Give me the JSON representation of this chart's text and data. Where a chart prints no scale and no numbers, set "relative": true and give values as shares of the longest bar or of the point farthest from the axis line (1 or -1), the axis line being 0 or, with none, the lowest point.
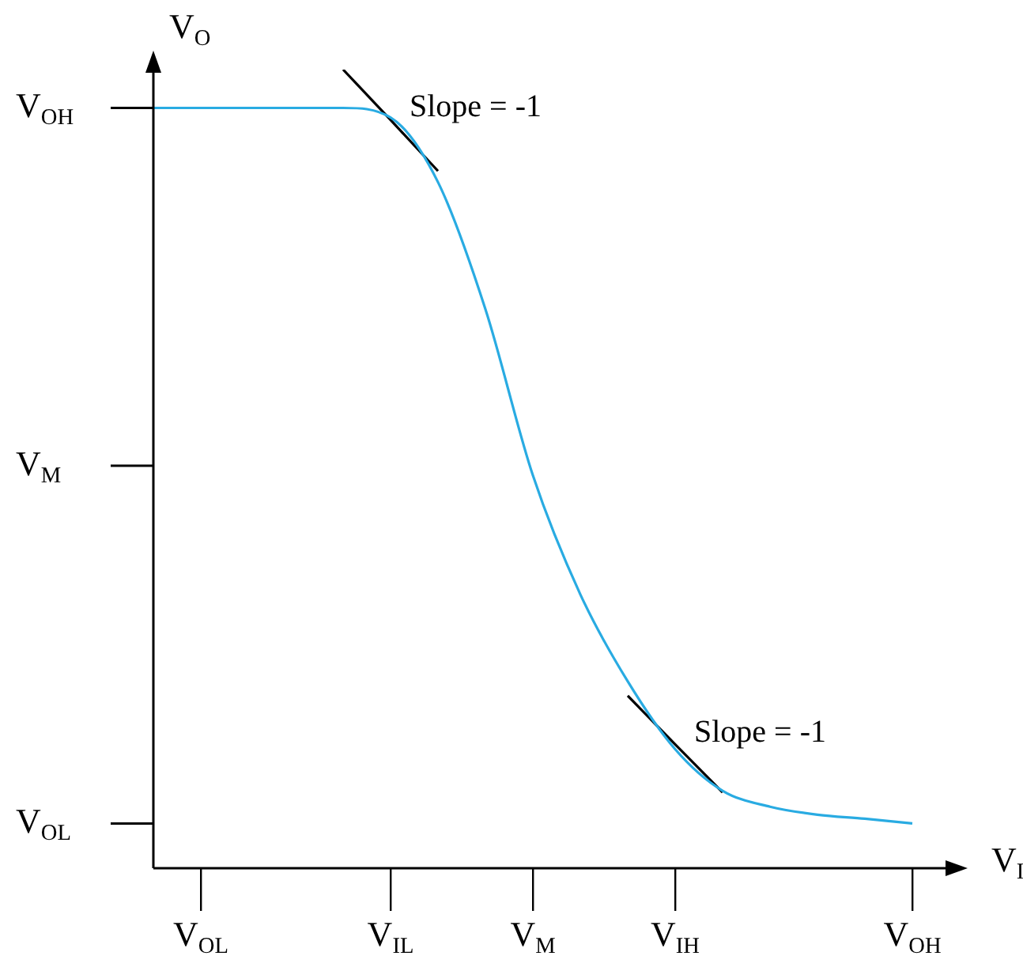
{
  "chart_data": {
    "type": "line",
    "xlabel": "V$_{I}$",
    "ylabel": "V$_{O}$",
    "relative": true,
    "categories": [
      null,
      "V$_{OL}$",
      null,
      null,
      null,
      "V$_{IL}$",
      null,
      null,
      "V$_{M}$",
      null,
      null,
      "V$_{IH}$",
      null,
      null,
      null,
      null,
      "V$_{OH}$"
    ],
    "series": [
      {
        "color": "#29abe2",
        "values": [
          0.952,
          0.952,
          0.952,
          0.952,
          0.952,
          0.94,
          0.859,
          0.7,
          0.492,
          0.343,
          0.234,
          0.149,
          0.097,
          0.077,
          0.067,
          0.062,
          0.056
        ]
      },
      {
        "color": "#000000",
        "values": [
          null,
          null,
          null,
          null,
          1,
          0.937,
          0.873,
          null,
          null,
          null,
          null,
          null,
          null,
          null,
          null,
          null,
          null
        ]
      },
      {
        "color": "#000000",
        "values": [
          null,
          null,
          null,
          null,
          null,
          null,
          null,
          null,
          null,
          null,
          0.216,
          0.155,
          0.095,
          null,
          null,
          null,
          null
        ]
      }
    ],
    "annotations": [
      "V$_{OH}$",
      "V$_{M}$",
      "V$_{OL}$",
      "Slope = -1",
      "Slope = -1"
    ],
    "grid": false,
    "legend": false,
    "marker": "none",
    "line_style": "solid"
  }
}
